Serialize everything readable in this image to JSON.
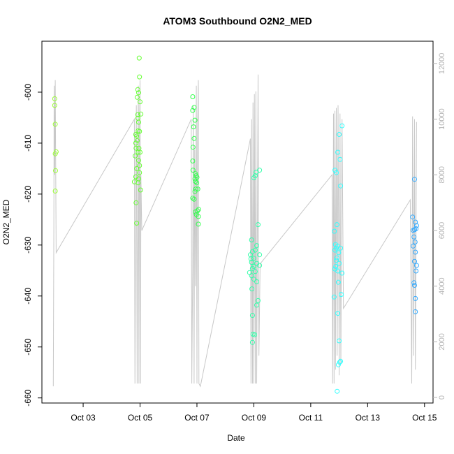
{
  "chart_data": {
    "type": "scatter",
    "title": "ATOM3 Southbound O2N2_MED",
    "xlabel": "Date",
    "ylabel": "O2N2_MED",
    "x_ticks": [
      "Oct 03",
      "Oct 05",
      "Oct 07",
      "Oct 09",
      "Oct 11",
      "Oct 13",
      "Oct 15"
    ],
    "y_ticks": [
      -600,
      -610,
      -620,
      -630,
      -640,
      -650,
      -660
    ],
    "y2_ticks": [
      0,
      2000,
      4000,
      6000,
      8000,
      10000,
      12000
    ],
    "xlim": [
      1.55,
      15.3
    ],
    "ylim": [
      -661,
      -590
    ],
    "y2lim": [
      -200,
      12800
    ],
    "grid": false,
    "series": [
      {
        "color": "#99ff33",
        "points": [
          [
            2.0,
            -601.3
          ],
          [
            2.0,
            -602.6
          ],
          [
            2.02,
            -606.3
          ],
          [
            2.02,
            -612.1
          ],
          [
            2.05,
            -611.7
          ],
          [
            2.03,
            -615.4
          ],
          [
            2.02,
            -619.4
          ]
        ]
      },
      {
        "color": "#66ff33",
        "points": [
          [
            4.97,
            -593.3
          ],
          [
            4.98,
            -597.0
          ],
          [
            4.92,
            -599.5
          ],
          [
            4.95,
            -600.1
          ],
          [
            4.9,
            -601.0
          ],
          [
            5.0,
            -601.9
          ],
          [
            4.92,
            -604.4
          ],
          [
            5.03,
            -604.3
          ],
          [
            4.92,
            -605.1
          ],
          [
            4.95,
            -605.9
          ],
          [
            4.93,
            -607.6
          ],
          [
            4.98,
            -607.7
          ],
          [
            4.85,
            -608.3
          ],
          [
            4.88,
            -608.6
          ],
          [
            4.9,
            -609.5
          ],
          [
            4.85,
            -610.0
          ],
          [
            4.96,
            -611.0
          ],
          [
            4.86,
            -611.0
          ],
          [
            4.93,
            -611.8
          ],
          [
            5.0,
            -611.8
          ],
          [
            4.83,
            -612.5
          ],
          [
            4.95,
            -613.4
          ],
          [
            4.98,
            -614.4
          ],
          [
            4.88,
            -615.0
          ],
          [
            4.98,
            -615.8
          ],
          [
            4.85,
            -616.6
          ],
          [
            4.95,
            -617.0
          ],
          [
            4.8,
            -617.6
          ],
          [
            4.93,
            -617.8
          ],
          [
            5.02,
            -619.2
          ],
          [
            4.86,
            -621.7
          ],
          [
            4.88,
            -625.7
          ]
        ]
      },
      {
        "color": "#33ff4d",
        "points": [
          [
            6.85,
            -600.9
          ],
          [
            6.9,
            -603.0
          ],
          [
            6.85,
            -603.6
          ],
          [
            6.93,
            -605.5
          ],
          [
            6.88,
            -606.8
          ],
          [
            6.9,
            -609.1
          ],
          [
            6.86,
            -610.8
          ],
          [
            6.85,
            -613.5
          ],
          [
            6.86,
            -615.3
          ],
          [
            6.95,
            -616.0
          ],
          [
            6.97,
            -616.4
          ],
          [
            7.0,
            -616.7
          ],
          [
            6.93,
            -617.0
          ],
          [
            6.95,
            -617.5
          ],
          [
            6.99,
            -617.8
          ],
          [
            6.96,
            -619.0
          ],
          [
            7.03,
            -619.0
          ],
          [
            6.93,
            -619.5
          ],
          [
            6.85,
            -620.8
          ],
          [
            6.9,
            -621.0
          ],
          [
            7.06,
            -623.0
          ],
          [
            7.02,
            -623.3
          ],
          [
            6.95,
            -623.5
          ],
          [
            6.98,
            -624.0
          ],
          [
            7.05,
            -624.4
          ],
          [
            7.05,
            -625.9
          ]
        ]
      },
      {
        "color": "#33ffaa",
        "points": [
          [
            9.2,
            -615.3
          ],
          [
            9.08,
            -615.7
          ],
          [
            9.05,
            -616.4
          ],
          [
            9.0,
            -616.8
          ],
          [
            9.15,
            -626.0
          ],
          [
            8.92,
            -629.0
          ],
          [
            9.1,
            -630.1
          ],
          [
            8.95,
            -631.3
          ],
          [
            9.05,
            -631.0
          ],
          [
            8.88,
            -631.9
          ],
          [
            9.2,
            -631.9
          ],
          [
            8.9,
            -632.7
          ],
          [
            9.0,
            -632.6
          ],
          [
            8.92,
            -633.4
          ],
          [
            9.1,
            -633.6
          ],
          [
            9.0,
            -634.2
          ],
          [
            9.2,
            -634.0
          ],
          [
            8.95,
            -634.6
          ],
          [
            9.05,
            -635.2
          ],
          [
            8.85,
            -635.4
          ],
          [
            8.92,
            -636.0
          ],
          [
            9.0,
            -636.7
          ],
          [
            9.1,
            -637.2
          ],
          [
            8.93,
            -638.6
          ],
          [
            9.15,
            -640.9
          ],
          [
            9.1,
            -641.8
          ],
          [
            8.95,
            -643.8
          ],
          [
            8.97,
            -647.5
          ],
          [
            9.03,
            -647.6
          ],
          [
            8.95,
            -649.1
          ]
        ]
      },
      {
        "color": "#33ffff",
        "points": [
          [
            12.1,
            -606.6
          ],
          [
            12.0,
            -608.3
          ],
          [
            11.95,
            -611.8
          ],
          [
            12.03,
            -613.2
          ],
          [
            11.85,
            -615.3
          ],
          [
            11.9,
            -615.8
          ],
          [
            12.05,
            -618.4
          ],
          [
            11.92,
            -626.0
          ],
          [
            11.83,
            -627.3
          ],
          [
            11.87,
            -629.9
          ],
          [
            11.95,
            -630.2
          ],
          [
            11.9,
            -630.6
          ],
          [
            12.05,
            -630.6
          ],
          [
            11.85,
            -631.0
          ],
          [
            11.98,
            -631.5
          ],
          [
            11.92,
            -632.5
          ],
          [
            11.9,
            -633.0
          ],
          [
            12.0,
            -633.6
          ],
          [
            11.88,
            -634.2
          ],
          [
            11.85,
            -634.7
          ],
          [
            11.95,
            -635.1
          ],
          [
            12.1,
            -635.5
          ],
          [
            11.97,
            -637.3
          ],
          [
            11.82,
            -640.2
          ],
          [
            12.07,
            -639.7
          ],
          [
            11.95,
            -643.4
          ],
          [
            12.0,
            -648.8
          ],
          [
            12.05,
            -652.8
          ],
          [
            12.02,
            -653.0
          ],
          [
            11.97,
            -653.5
          ],
          [
            11.93,
            -658.7
          ]
        ]
      },
      {
        "color": "#33aaff",
        "points": [
          [
            14.65,
            -617.1
          ],
          [
            14.58,
            -624.5
          ],
          [
            14.68,
            -625.5
          ],
          [
            14.72,
            -626.2
          ],
          [
            14.65,
            -627.0
          ],
          [
            14.6,
            -627.1
          ],
          [
            14.7,
            -626.8
          ],
          [
            14.63,
            -628.4
          ],
          [
            14.67,
            -629.4
          ],
          [
            14.6,
            -630.2
          ],
          [
            14.68,
            -631.4
          ],
          [
            14.65,
            -633.2
          ],
          [
            14.72,
            -634.0
          ],
          [
            14.7,
            -635.1
          ],
          [
            14.63,
            -637.4
          ],
          [
            14.65,
            -637.9
          ],
          [
            14.68,
            -640.5
          ],
          [
            14.68,
            -643.1
          ]
        ]
      }
    ],
    "secondary_line": {
      "color": "#c8c8c8",
      "points": [
        [
          1.95,
          400
        ],
        [
          1.97,
          6000
        ],
        [
          1.98,
          11200
        ],
        [
          2.0,
          8000
        ],
        [
          2.02,
          11400
        ],
        [
          2.05,
          5200
        ],
        [
          4.8,
          10000
        ],
        [
          4.82,
          500
        ],
        [
          4.85,
          7600
        ],
        [
          4.87,
          10500
        ],
        [
          4.9,
          500
        ],
        [
          4.92,
          8800
        ],
        [
          4.94,
          11200
        ],
        [
          4.96,
          500
        ],
        [
          4.98,
          9500
        ],
        [
          5.0,
          11400
        ],
        [
          5.02,
          500
        ],
        [
          5.03,
          8000
        ],
        [
          5.06,
          6000
        ],
        [
          6.8,
          10000
        ],
        [
          6.82,
          500
        ],
        [
          6.85,
          4600
        ],
        [
          6.87,
          10500
        ],
        [
          6.9,
          500
        ],
        [
          6.92,
          8900
        ],
        [
          6.95,
          4000
        ],
        [
          6.98,
          11200
        ],
        [
          7.0,
          500
        ],
        [
          7.02,
          9500
        ],
        [
          7.05,
          11400
        ],
        [
          7.07,
          500
        ],
        [
          7.12,
          400
        ],
        [
          8.88,
          9300
        ],
        [
          8.9,
          500
        ],
        [
          8.92,
          10000
        ],
        [
          8.95,
          500
        ],
        [
          8.97,
          10600
        ],
        [
          9.0,
          500
        ],
        [
          9.02,
          10900
        ],
        [
          9.05,
          500
        ],
        [
          9.07,
          11000
        ],
        [
          9.1,
          500
        ],
        [
          9.15,
          11600
        ],
        [
          9.18,
          1500
        ],
        [
          9.22,
          4800
        ],
        [
          11.75,
          8000
        ],
        [
          11.77,
          500
        ],
        [
          11.8,
          10200
        ],
        [
          11.82,
          500
        ],
        [
          11.85,
          10300
        ],
        [
          11.87,
          1000
        ],
        [
          11.9,
          10400
        ],
        [
          11.93,
          1500
        ],
        [
          11.96,
          10500
        ],
        [
          12.0,
          800
        ],
        [
          12.03,
          10200
        ],
        [
          12.06,
          1200
        ],
        [
          12.1,
          10000
        ],
        [
          12.15,
          3200
        ],
        [
          14.5,
          7100
        ],
        [
          14.55,
          500
        ],
        [
          14.58,
          10100
        ],
        [
          14.62,
          1500
        ],
        [
          14.65,
          10000
        ],
        [
          14.68,
          1000
        ],
        [
          14.72,
          9900
        ]
      ]
    }
  }
}
